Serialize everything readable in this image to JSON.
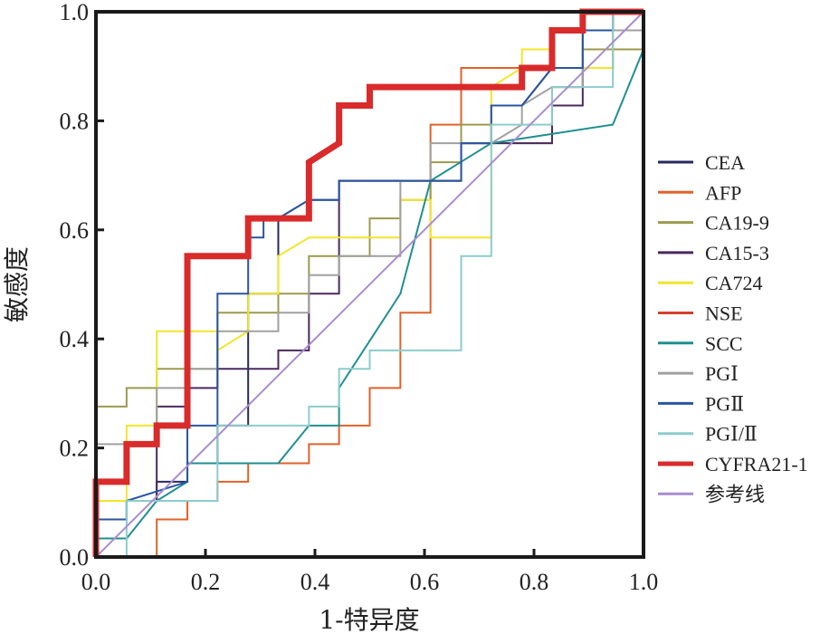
{
  "chart_data": {
    "type": "line",
    "title": "",
    "xlabel": "1-特异度",
    "ylabel": "敏感度",
    "xlim": [
      0,
      1
    ],
    "ylim": [
      0,
      1
    ],
    "xticks": [
      "0.0",
      "0.2",
      "0.4",
      "0.6",
      "0.8",
      "1.0"
    ],
    "yticks": [
      "0.0",
      "0.2",
      "0.4",
      "0.6",
      "0.8",
      "1.0"
    ],
    "xtick_values": [
      0,
      0.2,
      0.4,
      0.6,
      0.8,
      1.0
    ],
    "ytick_values": [
      0,
      0.2,
      0.4,
      0.6,
      0.8,
      1.0
    ],
    "grid": false,
    "legend_position": "right",
    "series": [
      {
        "name": "CEA",
        "color": "#262a5e",
        "width": 2,
        "points": [
          [
            0,
            0
          ],
          [
            0,
            0.069
          ],
          [
            0.056,
            0.069
          ],
          [
            0.056,
            0.103
          ],
          [
            0.111,
            0.103
          ],
          [
            0.111,
            0.138
          ],
          [
            0.167,
            0.138
          ],
          [
            0.167,
            0.172
          ],
          [
            0.222,
            0.172
          ],
          [
            0.222,
            0.241
          ],
          [
            0.278,
            0.241
          ],
          [
            0.278,
            0.483
          ],
          [
            0.333,
            0.483
          ],
          [
            0.333,
            0.621
          ],
          [
            0.389,
            0.655
          ],
          [
            0.444,
            0.655
          ],
          [
            0.444,
            0.69
          ],
          [
            0.667,
            0.69
          ],
          [
            0.667,
            0.759
          ],
          [
            0.722,
            0.759
          ],
          [
            0.722,
            0.828
          ],
          [
            0.778,
            0.828
          ],
          [
            0.833,
            0.897
          ],
          [
            0.889,
            0.897
          ],
          [
            0.889,
            0.966
          ],
          [
            0.944,
            0.966
          ],
          [
            0.944,
            1
          ],
          [
            1,
            1
          ]
        ]
      },
      {
        "name": "AFP",
        "color": "#e0622a",
        "width": 2,
        "points": [
          [
            0,
            0
          ],
          [
            0.111,
            0
          ],
          [
            0.111,
            0.069
          ],
          [
            0.167,
            0.069
          ],
          [
            0.167,
            0.103
          ],
          [
            0.222,
            0.103
          ],
          [
            0.222,
            0.138
          ],
          [
            0.278,
            0.138
          ],
          [
            0.278,
            0.172
          ],
          [
            0.389,
            0.172
          ],
          [
            0.389,
            0.207
          ],
          [
            0.444,
            0.207
          ],
          [
            0.444,
            0.241
          ],
          [
            0.5,
            0.241
          ],
          [
            0.5,
            0.31
          ],
          [
            0.556,
            0.31
          ],
          [
            0.556,
            0.448
          ],
          [
            0.611,
            0.448
          ],
          [
            0.611,
            0.552
          ],
          [
            0.611,
            0.793
          ],
          [
            0.667,
            0.793
          ],
          [
            0.667,
            0.897
          ],
          [
            0.778,
            0.897
          ],
          [
            0.778,
            0.897
          ],
          [
            0.944,
            0.897
          ],
          [
            0.944,
            0.931
          ],
          [
            1,
            0.931
          ],
          [
            1,
            1
          ]
        ]
      },
      {
        "name": "CA19-9",
        "color": "#9c9a4e",
        "width": 2,
        "points": [
          [
            0,
            0
          ],
          [
            0,
            0.276
          ],
          [
            0.056,
            0.276
          ],
          [
            0.056,
            0.31
          ],
          [
            0.111,
            0.31
          ],
          [
            0.111,
            0.345
          ],
          [
            0.222,
            0.345
          ],
          [
            0.222,
            0.448
          ],
          [
            0.333,
            0.448
          ],
          [
            0.333,
            0.483
          ],
          [
            0.389,
            0.483
          ],
          [
            0.389,
            0.552
          ],
          [
            0.5,
            0.552
          ],
          [
            0.5,
            0.621
          ],
          [
            0.556,
            0.621
          ],
          [
            0.556,
            0.655
          ],
          [
            0.611,
            0.655
          ],
          [
            0.611,
            0.724
          ],
          [
            0.667,
            0.724
          ],
          [
            0.667,
            0.793
          ],
          [
            0.722,
            0.793
          ],
          [
            0.722,
            0.759
          ],
          [
            0.833,
            0.759
          ],
          [
            0.833,
            0.862
          ],
          [
            0.889,
            0.862
          ],
          [
            0.889,
            0.931
          ],
          [
            1,
            0.931
          ],
          [
            1,
            1
          ]
        ]
      },
      {
        "name": "CA15-3",
        "color": "#4a2a5e",
        "width": 2,
        "points": [
          [
            0,
            0
          ],
          [
            0,
            0.103
          ],
          [
            0.111,
            0.103
          ],
          [
            0.111,
            0.276
          ],
          [
            0.167,
            0.276
          ],
          [
            0.167,
            0.31
          ],
          [
            0.222,
            0.31
          ],
          [
            0.222,
            0.345
          ],
          [
            0.333,
            0.345
          ],
          [
            0.333,
            0.379
          ],
          [
            0.389,
            0.379
          ],
          [
            0.389,
            0.483
          ],
          [
            0.444,
            0.483
          ],
          [
            0.444,
            0.69
          ],
          [
            0.667,
            0.69
          ],
          [
            0.667,
            0.759
          ],
          [
            0.833,
            0.759
          ],
          [
            0.833,
            0.828
          ],
          [
            0.889,
            0.828
          ],
          [
            0.889,
            0.897
          ],
          [
            0.944,
            0.897
          ],
          [
            0.944,
            1
          ],
          [
            1,
            1
          ]
        ]
      },
      {
        "name": "CA724",
        "color": "#f2e62a",
        "width": 2,
        "points": [
          [
            0,
            0
          ],
          [
            0,
            0.103
          ],
          [
            0.056,
            0.103
          ],
          [
            0.056,
            0.241
          ],
          [
            0.111,
            0.241
          ],
          [
            0.111,
            0.414
          ],
          [
            0.222,
            0.414
          ],
          [
            0.222,
            0.379
          ],
          [
            0.278,
            0.414
          ],
          [
            0.278,
            0.483
          ],
          [
            0.333,
            0.483
          ],
          [
            0.333,
            0.552
          ],
          [
            0.389,
            0.586
          ],
          [
            0.556,
            0.586
          ],
          [
            0.556,
            0.655
          ],
          [
            0.611,
            0.655
          ],
          [
            0.611,
            0.586
          ],
          [
            0.722,
            0.586
          ],
          [
            0.722,
            0.862
          ],
          [
            0.778,
            0.897
          ],
          [
            0.778,
            0.931
          ],
          [
            0.833,
            0.931
          ],
          [
            0.833,
            0.897
          ],
          [
            0.944,
            0.897
          ],
          [
            0.944,
            0.966
          ],
          [
            1,
            0.966
          ],
          [
            1,
            1
          ]
        ]
      },
      {
        "name": "NSE",
        "color": "#d6402a",
        "width": 2,
        "points": [
          [
            0,
            0
          ],
          [
            0,
            0.138
          ],
          [
            0.056,
            0.138
          ],
          [
            0.056,
            0.207
          ],
          [
            0.111,
            0.207
          ]
        ]
      },
      {
        "name": "SCC",
        "color": "#1f8f8f",
        "width": 2,
        "points": [
          [
            0,
            0
          ],
          [
            0,
            0.034
          ],
          [
            0.056,
            0.034
          ],
          [
            0.111,
            0.103
          ],
          [
            0.167,
            0.138
          ],
          [
            0.167,
            0.172
          ],
          [
            0.278,
            0.172
          ],
          [
            0.333,
            0.172
          ],
          [
            0.389,
            0.241
          ],
          [
            0.444,
            0.241
          ],
          [
            0.444,
            0.31
          ],
          [
            0.556,
            0.483
          ],
          [
            0.611,
            0.69
          ],
          [
            0.722,
            0.759
          ],
          [
            0.944,
            0.793
          ],
          [
            1,
            0.931
          ]
        ]
      },
      {
        "name": "PGⅠ",
        "color": "#a0a0a0",
        "width": 2,
        "points": [
          [
            0,
            0
          ],
          [
            0,
            0.207
          ],
          [
            0.111,
            0.207
          ],
          [
            0.111,
            0.31
          ],
          [
            0.167,
            0.31
          ],
          [
            0.167,
            0.345
          ],
          [
            0.222,
            0.345
          ],
          [
            0.222,
            0.414
          ],
          [
            0.333,
            0.414
          ],
          [
            0.333,
            0.448
          ],
          [
            0.389,
            0.448
          ],
          [
            0.389,
            0.517
          ],
          [
            0.444,
            0.517
          ],
          [
            0.444,
            0.552
          ],
          [
            0.556,
            0.552
          ],
          [
            0.556,
            0.69
          ],
          [
            0.611,
            0.69
          ],
          [
            0.611,
            0.759
          ],
          [
            0.722,
            0.759
          ],
          [
            0.778,
            0.793
          ],
          [
            0.778,
            0.828
          ],
          [
            0.833,
            0.862
          ],
          [
            0.889,
            0.862
          ],
          [
            0.889,
            0.966
          ],
          [
            1,
            0.966
          ],
          [
            1,
            1
          ]
        ]
      },
      {
        "name": "PGⅡ",
        "color": "#2a55a0",
        "width": 2,
        "points": [
          [
            0,
            0
          ],
          [
            0,
            0.069
          ],
          [
            0.056,
            0.069
          ],
          [
            0.056,
            0.103
          ],
          [
            0.167,
            0.138
          ],
          [
            0.167,
            0.241
          ],
          [
            0.222,
            0.241
          ],
          [
            0.222,
            0.483
          ],
          [
            0.278,
            0.483
          ],
          [
            0.278,
            0.586
          ],
          [
            0.306,
            0.586
          ],
          [
            0.306,
            0.621
          ],
          [
            0.333,
            0.621
          ],
          [
            0.389,
            0.655
          ],
          [
            0.444,
            0.655
          ],
          [
            0.444,
            0.69
          ],
          [
            0.667,
            0.69
          ],
          [
            0.667,
            0.759
          ],
          [
            0.722,
            0.759
          ],
          [
            0.722,
            0.828
          ],
          [
            0.778,
            0.828
          ],
          [
            0.833,
            0.897
          ],
          [
            0.889,
            0.897
          ],
          [
            0.889,
            0.966
          ],
          [
            0.944,
            0.966
          ],
          [
            0.944,
            1
          ],
          [
            1,
            1
          ]
        ]
      },
      {
        "name": "PGⅠ/Ⅱ",
        "color": "#8ccccc",
        "width": 2,
        "points": [
          [
            0,
            0
          ],
          [
            0.056,
            0
          ],
          [
            0.056,
            0.103
          ],
          [
            0.222,
            0.103
          ],
          [
            0.222,
            0.241
          ],
          [
            0.389,
            0.241
          ],
          [
            0.389,
            0.276
          ],
          [
            0.444,
            0.276
          ],
          [
            0.444,
            0.345
          ],
          [
            0.5,
            0.345
          ],
          [
            0.5,
            0.379
          ],
          [
            0.667,
            0.379
          ],
          [
            0.667,
            0.552
          ],
          [
            0.722,
            0.552
          ],
          [
            0.722,
            0.793
          ],
          [
            0.833,
            0.793
          ],
          [
            0.833,
            0.862
          ],
          [
            0.944,
            0.862
          ],
          [
            0.944,
            1
          ],
          [
            1,
            1
          ]
        ]
      },
      {
        "name": "CYFRA21-1",
        "color": "#d92b2b",
        "width": 7,
        "points": [
          [
            0,
            0
          ],
          [
            0,
            0.138
          ],
          [
            0.056,
            0.138
          ],
          [
            0.056,
            0.207
          ],
          [
            0.111,
            0.207
          ],
          [
            0.111,
            0.241
          ],
          [
            0.167,
            0.241
          ],
          [
            0.167,
            0.552
          ],
          [
            0.278,
            0.552
          ],
          [
            0.278,
            0.621
          ],
          [
            0.389,
            0.621
          ],
          [
            0.389,
            0.724
          ],
          [
            0.444,
            0.759
          ],
          [
            0.444,
            0.828
          ],
          [
            0.5,
            0.828
          ],
          [
            0.5,
            0.862
          ],
          [
            0.778,
            0.862
          ],
          [
            0.778,
            0.897
          ],
          [
            0.833,
            0.897
          ],
          [
            0.833,
            0.966
          ],
          [
            0.889,
            0.966
          ],
          [
            0.889,
            1
          ],
          [
            1,
            1
          ]
        ]
      },
      {
        "name": "参考线",
        "color": "#a98ccf",
        "width": 2,
        "points": [
          [
            0,
            0
          ],
          [
            1,
            1
          ]
        ]
      }
    ]
  }
}
